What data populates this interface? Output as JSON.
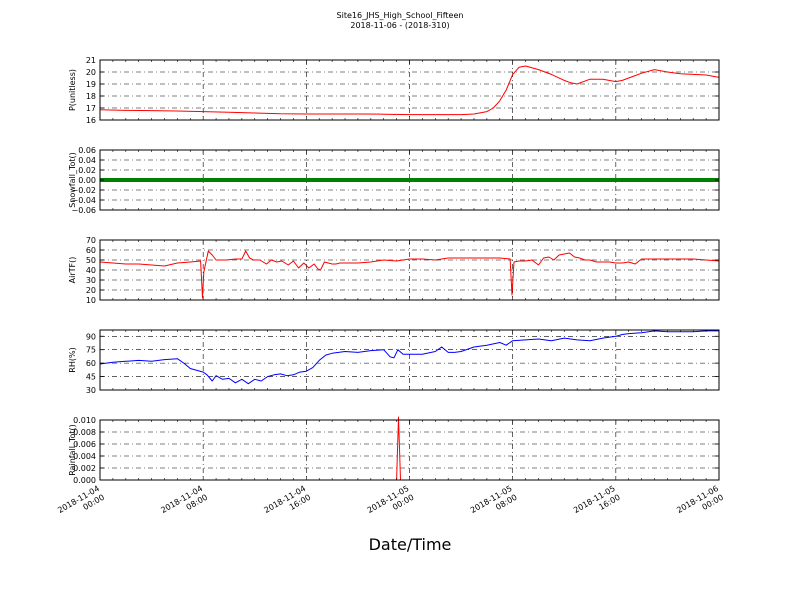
{
  "title": "Site16_JHS_High_School_Fifteen",
  "subtitle": "2018-11-06 - (2018-310)",
  "xlabel": "Date/Time",
  "x_ticks": [
    [
      "2018-11-04",
      "00:00"
    ],
    [
      "2018-11-04",
      "08:00"
    ],
    [
      "2018-11-04",
      "16:00"
    ],
    [
      "2018-11-05",
      "00:00"
    ],
    [
      "2018-11-05",
      "08:00"
    ],
    [
      "2018-11-05",
      "16:00"
    ],
    [
      "2018-11-06",
      "00:00"
    ]
  ],
  "chart_data": [
    {
      "type": "line",
      "ylabel": "P(unitless)",
      "ylim": [
        16,
        21
      ],
      "yticks": [
        "16",
        "17",
        "18",
        "19",
        "20",
        "21"
      ],
      "grid": true,
      "series": [
        {
          "color": "#ff0000",
          "x": [
            0,
            2,
            4,
            6,
            8,
            10,
            12,
            14,
            16,
            18,
            20,
            22,
            24,
            26,
            28,
            29,
            30,
            30.5,
            31,
            31.5,
            32,
            32.5,
            33,
            34,
            35,
            36,
            36.5,
            37,
            38,
            39,
            40,
            40.5,
            41,
            42,
            43,
            44,
            45,
            46,
            47,
            48
          ],
          "y": [
            16.85,
            16.8,
            16.78,
            16.75,
            16.7,
            16.65,
            16.58,
            16.52,
            16.5,
            16.5,
            16.5,
            16.48,
            16.45,
            16.45,
            16.45,
            16.5,
            16.7,
            17.0,
            17.6,
            18.5,
            19.8,
            20.4,
            20.5,
            20.2,
            19.8,
            19.3,
            19.1,
            19.0,
            19.4,
            19.4,
            19.2,
            19.3,
            19.5,
            19.9,
            20.2,
            20.0,
            19.85,
            19.8,
            19.75,
            19.55
          ]
        }
      ]
    },
    {
      "type": "line",
      "ylabel": "Snowfall_Tot()",
      "ylim": [
        -0.06,
        0.06
      ],
      "yticks": [
        "−0.06",
        "−0.04",
        "−0.02",
        "0.00",
        "0.02",
        "0.04",
        "0.06"
      ],
      "grid": true,
      "series": [
        {
          "color": "#008000",
          "x": [
            0,
            48
          ],
          "y": [
            0,
            0
          ]
        }
      ]
    },
    {
      "type": "line",
      "ylabel": "AirTF()",
      "ylim": [
        10,
        70
      ],
      "yticks": [
        "10",
        "20",
        "30",
        "40",
        "50",
        "60",
        "70"
      ],
      "grid": true,
      "series": [
        {
          "color": "#ff0000",
          "x": [
            0,
            1,
            2,
            3,
            4,
            5,
            6,
            7,
            7.8,
            7.95,
            8.05,
            8.4,
            8.7,
            9.0,
            9.3,
            9.8,
            10.5,
            11,
            11.3,
            11.6,
            11.9,
            12.4,
            12.9,
            13.3,
            13.7,
            14.1,
            14.6,
            15.0,
            15.4,
            15.8,
            16.2,
            16.6,
            16.9,
            17.1,
            17.4,
            17.7,
            18.0,
            18.3,
            18.6,
            19,
            20,
            21,
            22,
            23,
            24,
            25,
            26,
            27,
            28,
            29,
            30,
            31,
            31.8,
            31.95,
            32.1,
            32.5,
            33,
            33.5,
            34,
            34.4,
            34.8,
            35.2,
            35.6,
            36,
            36.4,
            36.8,
            37.2,
            37.6,
            38,
            38.5,
            39,
            39.5,
            40,
            40.5,
            41,
            41.5,
            42,
            43,
            44,
            45,
            46,
            47,
            48
          ],
          "y": [
            48,
            47,
            46,
            46,
            45,
            44,
            47,
            48,
            49,
            12,
            38,
            59,
            55,
            50,
            50,
            50,
            51,
            51,
            59,
            52,
            50,
            50,
            46,
            50,
            48,
            49,
            45,
            49,
            42,
            47,
            42,
            46,
            41,
            40,
            48,
            47,
            46,
            46,
            47,
            47,
            47,
            48,
            50,
            49,
            51,
            51,
            50,
            52,
            52,
            52,
            52,
            52,
            51,
            15,
            48,
            49,
            49,
            50,
            45,
            52,
            53,
            50,
            55,
            56,
            57,
            53,
            52,
            50,
            50,
            48,
            48,
            48,
            47,
            47,
            48,
            46,
            51,
            51,
            51,
            51,
            51,
            50,
            49
          ]
        }
      ]
    },
    {
      "type": "line",
      "ylabel": "RH(%)",
      "ylim": [
        30,
        97
      ],
      "yticks": [
        "30",
        "45",
        "60",
        "75",
        "90"
      ],
      "grid": true,
      "series": [
        {
          "color": "#0000ff",
          "x": [
            0,
            0.5,
            1,
            2,
            3,
            4,
            5,
            6,
            6.5,
            7,
            8,
            8.3,
            8.7,
            9,
            9.5,
            10,
            10.5,
            11,
            11.5,
            12,
            12.5,
            13,
            13.5,
            14,
            14.5,
            15,
            15.5,
            16,
            16.5,
            17,
            17.5,
            18,
            19,
            20,
            21,
            22,
            22.5,
            22.8,
            23.1,
            23.5,
            24,
            25,
            26,
            26.5,
            27,
            27.5,
            28,
            29,
            30,
            31,
            31.5,
            32,
            33,
            34,
            35,
            36,
            37,
            38,
            39,
            40,
            40.5,
            41,
            42,
            43,
            44,
            45,
            46,
            47,
            48
          ],
          "y": [
            59,
            60,
            61,
            62,
            63,
            62,
            64,
            65,
            60,
            54,
            50,
            47,
            40,
            46,
            42,
            43,
            38,
            42,
            37,
            42,
            40,
            45,
            47,
            48,
            46,
            47,
            50,
            51,
            55,
            63,
            69,
            71,
            73,
            72,
            74,
            75,
            67,
            66,
            75,
            70,
            70,
            70,
            73,
            78,
            72,
            72,
            73,
            78,
            80,
            83,
            80,
            85,
            86,
            87,
            85,
            88,
            86,
            85,
            88,
            90,
            92,
            93,
            94,
            96,
            95,
            95,
            95,
            96,
            96
          ]
        }
      ]
    },
    {
      "type": "line",
      "ylabel": "Rainfall_Tot()",
      "ylim": [
        0,
        0.01
      ],
      "yticks": [
        "0.000",
        "0.002",
        "0.004",
        "0.006",
        "0.008",
        "0.010"
      ],
      "grid": true,
      "series": [
        {
          "color": "#ff0000",
          "x": [
            0,
            23.0,
            23.15,
            23.3,
            48
          ],
          "y": [
            0,
            0,
            0.0105,
            0,
            0
          ]
        }
      ]
    }
  ]
}
